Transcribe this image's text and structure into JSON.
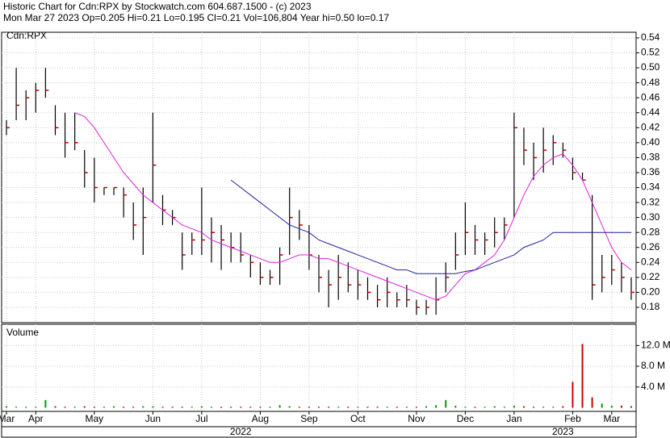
{
  "chart_data": {
    "type": "ohlc",
    "title": "Historic Chart for Cdn:RPX by Stockwatch.com 604.687.1500 - (c) 2023",
    "subtitle": "Mon Mar 27 2023  Op=0.205  Hi=0.21  Lo=0.195  Cl=0.21  Vol=106,804  Year hi=0.50  lo=0.17",
    "symbol_label": "Cdn:RPX",
    "volume_label": "Volume",
    "xticks": [
      {
        "value": 0,
        "label": "Mar"
      },
      {
        "value": 3,
        "label": "Apr"
      },
      {
        "value": 9,
        "label": "May"
      },
      {
        "value": 15,
        "label": "Jun"
      },
      {
        "value": 20,
        "label": "Jul"
      },
      {
        "value": 26,
        "label": "Aug"
      },
      {
        "value": 31,
        "label": "Sep"
      },
      {
        "value": 36,
        "label": "Oct"
      },
      {
        "value": 42,
        "label": "Nov"
      },
      {
        "value": 47,
        "label": "Dec"
      },
      {
        "value": 52,
        "label": "Jan"
      },
      {
        "value": 58,
        "label": "Feb"
      },
      {
        "value": 62,
        "label": "Mar"
      }
    ],
    "years": [
      {
        "value": 24,
        "label": "2022"
      },
      {
        "value": 57,
        "label": "2023"
      }
    ],
    "high": [
      0.43,
      0.5,
      0.47,
      0.48,
      0.5,
      0.45,
      0.44,
      0.44,
      0.39,
      0.38,
      0.34,
      0.34,
      0.34,
      0.32,
      0.34,
      0.44,
      0.33,
      0.31,
      0.28,
      0.28,
      0.34,
      0.3,
      0.29,
      0.28,
      0.28,
      0.25,
      0.24,
      0.23,
      0.26,
      0.34,
      0.31,
      0.29,
      0.25,
      0.23,
      0.25,
      0.24,
      0.23,
      0.22,
      0.21,
      0.22,
      0.2,
      0.21,
      0.19,
      0.19,
      0.22,
      0.24,
      0.28,
      0.32,
      0.29,
      0.28,
      0.3,
      0.3,
      0.44,
      0.42,
      0.4,
      0.42,
      0.41,
      0.4,
      0.38,
      0.36,
      0.33,
      0.25,
      0.25,
      0.24,
      0.22
    ],
    "low": [
      0.41,
      0.43,
      0.43,
      0.44,
      0.46,
      0.41,
      0.38,
      0.39,
      0.34,
      0.32,
      0.33,
      0.33,
      0.3,
      0.27,
      0.25,
      0.32,
      0.29,
      0.29,
      0.23,
      0.25,
      0.25,
      0.24,
      0.23,
      0.24,
      0.24,
      0.22,
      0.21,
      0.21,
      0.21,
      0.25,
      0.27,
      0.23,
      0.2,
      0.18,
      0.19,
      0.2,
      0.19,
      0.19,
      0.18,
      0.18,
      0.18,
      0.18,
      0.17,
      0.17,
      0.17,
      0.2,
      0.23,
      0.25,
      0.25,
      0.25,
      0.26,
      0.27,
      0.3,
      0.37,
      0.35,
      0.36,
      0.37,
      0.38,
      0.35,
      0.35,
      0.19,
      0.2,
      0.21,
      0.2,
      0.19
    ],
    "close": [
      0.42,
      0.45,
      0.46,
      0.47,
      0.47,
      0.42,
      0.4,
      0.4,
      0.36,
      0.34,
      0.34,
      0.34,
      0.33,
      0.29,
      0.3,
      0.37,
      0.31,
      0.3,
      0.25,
      0.27,
      0.27,
      0.28,
      0.27,
      0.26,
      0.25,
      0.24,
      0.22,
      0.22,
      0.25,
      0.3,
      0.29,
      0.25,
      0.22,
      0.21,
      0.22,
      0.21,
      0.21,
      0.2,
      0.19,
      0.2,
      0.19,
      0.19,
      0.18,
      0.18,
      0.19,
      0.22,
      0.25,
      0.28,
      0.27,
      0.27,
      0.28,
      0.29,
      0.42,
      0.39,
      0.38,
      0.39,
      0.4,
      0.39,
      0.36,
      0.35,
      0.21,
      0.22,
      0.23,
      0.22,
      0.2
    ],
    "bar_color": "#000000",
    "close_color": "#c00000",
    "series": [
      {
        "color": "#e020e0",
        "values": [
          null,
          null,
          null,
          null,
          null,
          null,
          null,
          0.44,
          0.435,
          0.42,
          0.4,
          0.38,
          0.36,
          0.345,
          0.33,
          0.32,
          0.31,
          0.3,
          0.29,
          0.285,
          0.28,
          0.27,
          0.265,
          0.26,
          0.255,
          0.25,
          0.245,
          0.24,
          0.24,
          0.245,
          0.25,
          0.25,
          0.245,
          0.245,
          0.24,
          0.235,
          0.23,
          0.225,
          0.22,
          0.215,
          0.21,
          0.205,
          0.2,
          0.195,
          0.19,
          0.195,
          0.21,
          0.225,
          0.23,
          0.24,
          0.25,
          0.27,
          0.3,
          0.33,
          0.355,
          0.37,
          0.38,
          0.385,
          0.37,
          0.35,
          0.32,
          0.29,
          0.26,
          0.24,
          0.23
        ]
      },
      {
        "color": "#2020a0",
        "values": [
          null,
          null,
          null,
          null,
          null,
          null,
          null,
          null,
          null,
          null,
          null,
          null,
          null,
          null,
          null,
          null,
          null,
          null,
          null,
          null,
          null,
          null,
          null,
          0.35,
          0.34,
          0.33,
          0.32,
          0.31,
          0.3,
          0.29,
          0.285,
          0.28,
          0.27,
          0.265,
          0.26,
          0.255,
          0.25,
          0.245,
          0.24,
          0.235,
          0.23,
          0.23,
          0.225,
          0.225,
          0.225,
          0.225,
          0.225,
          0.228,
          0.23,
          0.235,
          0.24,
          0.245,
          0.25,
          0.26,
          0.265,
          0.27,
          0.28,
          0.28,
          0.28,
          0.28,
          0.28,
          0.28,
          0.28,
          0.28,
          0.28
        ]
      }
    ],
    "ylim": [
      0.1595,
      0.5475
    ],
    "yticks": [
      0.18,
      {
        "value": 0.2,
        "label": "0.20"
      },
      0.22,
      0.24,
      0.26,
      0.28,
      {
        "value": 0.3,
        "label": "0.30"
      },
      0.32,
      0.34,
      0.36,
      0.38,
      {
        "value": 0.4,
        "label": "0.40"
      },
      0.42,
      0.44,
      0.46,
      0.48,
      {
        "value": 0.5,
        "label": "0.50"
      },
      0.52,
      0.54
    ],
    "volume": [
      0.3,
      0.2,
      0.2,
      0.2,
      1.5,
      0.3,
      0.2,
      0.2,
      0.3,
      0.2,
      0.2,
      0.3,
      0.2,
      0.2,
      0.3,
      0.3,
      0.2,
      0.2,
      0.2,
      0.2,
      0.3,
      0.2,
      0.2,
      0.2,
      0.2,
      0.2,
      0.2,
      0.2,
      0.5,
      0.3,
      0.2,
      0.2,
      0.2,
      0.2,
      0.2,
      0.2,
      0.2,
      0.2,
      0.2,
      0.2,
      0.2,
      0.2,
      0.2,
      0.3,
      0.5,
      1.5,
      0.4,
      0.2,
      0.2,
      0.2,
      0.3,
      0.2,
      0.4,
      0.3,
      0.2,
      0.2,
      0.2,
      0.3,
      5.0,
      12.3,
      2.0,
      0.8,
      0.4,
      0.4,
      0.3
    ],
    "volume_up_color": "#00a000",
    "volume_down_color": "#d00000",
    "vlim": [
      -0.7,
      16.1
    ],
    "vticks": [
      {
        "value": 4,
        "label": "4.0 M"
      },
      {
        "value": 8,
        "label": "8.0 M"
      },
      {
        "value": 12,
        "label": "12.0 M"
      }
    ],
    "grid": true
  }
}
